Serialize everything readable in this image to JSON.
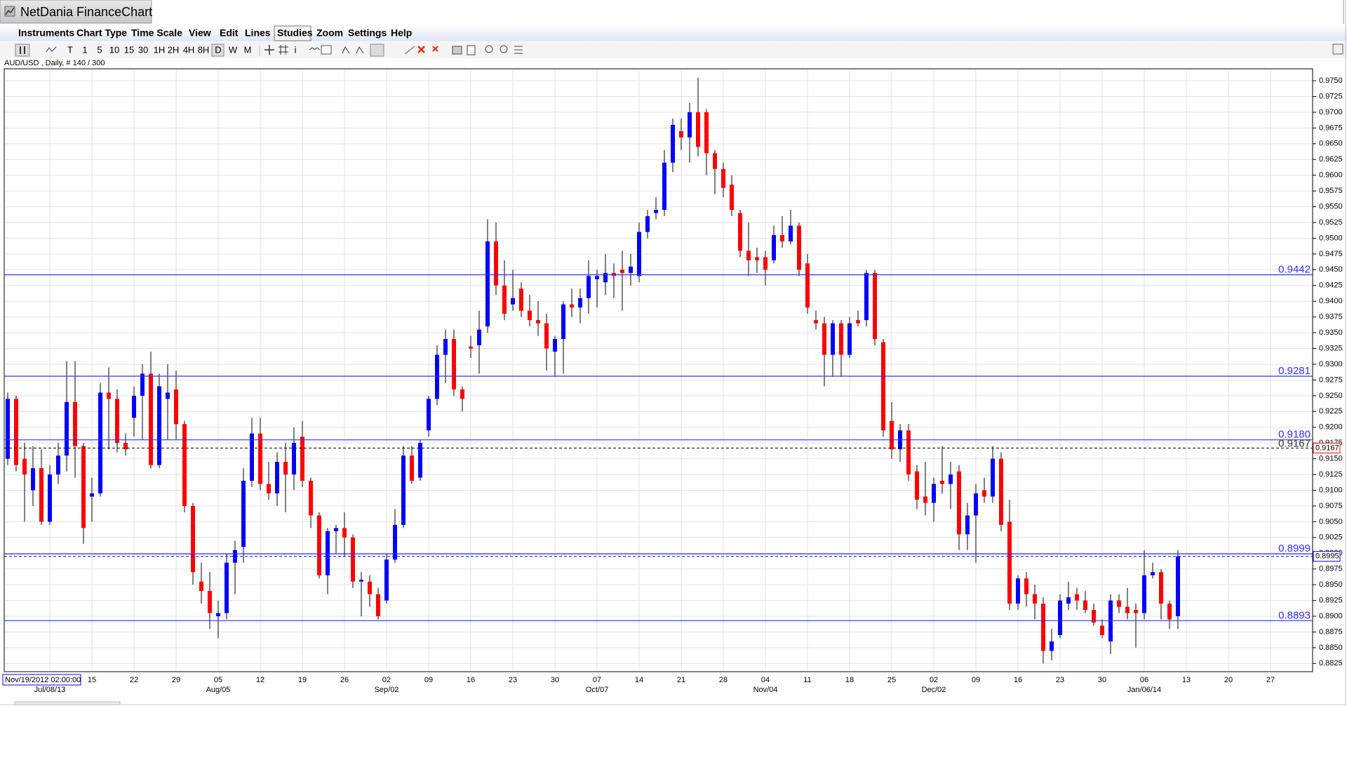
{
  "window": {
    "title": "NetDania FinanceChart"
  },
  "menu": [
    "Instruments",
    "Chart Type",
    "Time Scale",
    "View",
    "Edit",
    "Lines",
    "Studies",
    "Zoom",
    "Settings",
    "Help"
  ],
  "toolbar": [
    "T",
    "1",
    "5",
    "10",
    "15",
    "30",
    "1H",
    "2H",
    "4H",
    "8H",
    "D",
    "W",
    "M",
    "i"
  ],
  "chart_data": {
    "type": "candlestick",
    "title": "AUD/USD , Daily, # 140 / 300",
    "cursor_label": "Nov/19/2012 02:00:00",
    "categories": [
      null,
      null,
      null,
      null,
      null,
      null,
      null,
      null,
      null,
      null,
      "15",
      null,
      null,
      null,
      null,
      "22",
      null,
      null,
      null,
      null,
      "29",
      null,
      null,
      null,
      null,
      "05",
      null,
      null,
      null,
      null,
      "12",
      null,
      null,
      null,
      null,
      "19",
      null,
      null,
      null,
      null,
      "26",
      null,
      null,
      null,
      null,
      "02",
      null,
      null,
      null,
      null,
      "09",
      null,
      null,
      null,
      null,
      "16",
      null,
      null,
      null,
      null,
      "23",
      null,
      null,
      null,
      null,
      "30",
      null,
      null,
      null,
      null,
      "07",
      null,
      null,
      null,
      null,
      "14",
      null,
      null,
      null,
      null,
      "21",
      null,
      null,
      null,
      null,
      "28",
      null,
      null,
      null,
      null,
      "04",
      null,
      null,
      null,
      null,
      "11",
      null,
      null,
      null,
      null,
      "18",
      null,
      null,
      null,
      null,
      "25",
      null,
      null,
      null,
      null,
      "02",
      null,
      null,
      null,
      null,
      "09",
      null,
      null,
      null,
      null,
      "16",
      null,
      null,
      null,
      null,
      "23",
      null,
      null,
      null,
      null,
      "30",
      null,
      null,
      null,
      null,
      "06",
      null,
      null,
      null,
      null,
      "13",
      null,
      null,
      null,
      null,
      "20",
      null,
      null,
      null,
      null,
      "27"
    ],
    "months": [
      null,
      null,
      null,
      null,
      null,
      "Jul/08/13",
      null,
      null,
      null,
      null,
      null,
      null,
      null,
      null,
      null,
      null,
      null,
      null,
      null,
      null,
      null,
      null,
      null,
      null,
      null,
      "Aug/05",
      null,
      null,
      null,
      null,
      null,
      null,
      null,
      null,
      null,
      null,
      null,
      null,
      null,
      null,
      null,
      null,
      null,
      null,
      null,
      "Sep/02",
      null,
      null,
      null,
      null,
      null,
      null,
      null,
      null,
      null,
      null,
      null,
      null,
      null,
      null,
      null,
      null,
      null,
      null,
      null,
      null,
      null,
      null,
      null,
      null,
      "Oct/07",
      null,
      null,
      null,
      null,
      null,
      null,
      null,
      null,
      null,
      null,
      null,
      null,
      null,
      null,
      null,
      null,
      null,
      null,
      null,
      "Nov/04",
      null,
      null,
      null,
      null,
      null,
      null,
      null,
      null,
      null,
      null,
      null,
      null,
      null,
      null,
      null,
      null,
      null,
      null,
      null,
      "Dec/02",
      null,
      null,
      null,
      null,
      null,
      null,
      null,
      null,
      null,
      null,
      null,
      null,
      null,
      null,
      null,
      null,
      null,
      null,
      null,
      null,
      null,
      null,
      null,
      null,
      "Jan/06/14",
      null,
      null,
      null,
      null,
      null,
      null,
      null,
      null,
      null,
      null,
      null,
      null,
      null,
      null,
      null
    ],
    "open": [
      0.915,
      0.9245,
      0.915,
      0.91,
      0.9135,
      0.905,
      0.9125,
      0.9155,
      0.924,
      0.917,
      0.909,
      0.9095,
      0.9255,
      0.9245,
      0.9175,
      0.9215,
      0.925,
      0.9285,
      0.914,
      0.9245,
      0.926,
      0.9205,
      0.9075,
      0.8955,
      0.894,
      0.89,
      0.8905,
      0.8985,
      0.901,
      0.9115,
      0.919,
      0.911,
      0.9095,
      0.9145,
      0.9125,
      0.9185,
      0.9115,
      0.906,
      0.8965,
      0.9035,
      0.904,
      0.9025,
      0.8955,
      0.8955,
      0.8935,
      0.8925,
      0.899,
      0.9045,
      0.9155,
      0.912,
      0.9195,
      0.9245,
      0.9315,
      0.934,
      0.926,
      0.9328,
      0.933,
      0.936,
      0.9495,
      0.9425,
      0.9395,
      0.942,
      0.9385,
      0.937,
      0.9365,
      0.932,
      0.934,
      0.9395,
      0.939,
      0.9405,
      0.9435,
      0.943,
      0.9445,
      0.945,
      0.9445,
      0.944,
      0.951,
      0.954,
      0.9545,
      0.962,
      0.967,
      0.966,
      0.97,
      0.97,
      0.9635,
      0.961,
      0.9585,
      0.954,
      0.948,
      0.947,
      0.947,
      0.9465,
      0.9505,
      0.9495,
      0.952,
      0.946,
      0.937,
      0.9365,
      0.9315,
      0.9365,
      0.9315,
      0.937,
      0.937,
      0.9445,
      0.9335,
      0.921,
      0.9165,
      0.9195,
      0.913,
      0.909,
      0.908,
      0.9115,
      0.911,
      0.913,
      0.903,
      0.906,
      0.91,
      0.909,
      0.915,
      0.905,
      0.892,
      0.896,
      0.8935,
      0.892,
      0.8845,
      0.887,
      0.892,
      0.8935,
      0.8925,
      0.891,
      0.8885,
      0.886,
      0.8925,
      0.8915,
      0.891,
      0.8905,
      0.8965,
      0.897,
      0.892,
      0.89,
      null,
      null,
      null,
      null,
      null,
      null,
      null,
      null,
      null,
      null,
      null
    ],
    "high": [
      0.9255,
      0.925,
      0.9175,
      0.917,
      0.9165,
      0.914,
      0.9175,
      0.9305,
      0.9305,
      0.9175,
      0.912,
      0.927,
      0.9295,
      0.926,
      0.919,
      0.9265,
      0.93,
      0.932,
      0.9285,
      0.93,
      0.929,
      0.921,
      0.908,
      0.8985,
      0.897,
      0.8925,
      0.9,
      0.902,
      0.9135,
      0.9215,
      0.9215,
      0.9145,
      0.916,
      0.9175,
      0.92,
      0.921,
      0.912,
      0.9065,
      0.904,
      0.9045,
      0.9065,
      0.903,
      0.897,
      0.8965,
      0.8945,
      0.9,
      0.907,
      0.917,
      0.917,
      0.918,
      0.925,
      0.933,
      0.9355,
      0.9355,
      0.9265,
      0.9345,
      0.9385,
      0.953,
      0.9525,
      0.9465,
      0.945,
      0.943,
      0.941,
      0.94,
      0.938,
      0.9345,
      0.94,
      0.942,
      0.942,
      0.9465,
      0.945,
      0.9475,
      0.946,
      0.948,
      0.9475,
      0.9525,
      0.9545,
      0.9565,
      0.964,
      0.969,
      0.969,
      0.9715,
      0.9755,
      0.9705,
      0.964,
      0.962,
      0.96,
      0.9545,
      0.9525,
      0.9485,
      0.948,
      0.952,
      0.9535,
      0.9545,
      0.9525,
      0.9475,
      0.9385,
      0.9375,
      0.937,
      0.937,
      0.9375,
      0.9385,
      0.945,
      0.945,
      0.934,
      0.924,
      0.9205,
      0.9205,
      0.914,
      0.9145,
      0.912,
      0.917,
      0.9145,
      0.914,
      0.908,
      0.911,
      0.912,
      0.917,
      0.916,
      0.9085,
      0.8965,
      0.897,
      0.895,
      0.893,
      0.888,
      0.8935,
      0.8955,
      0.8945,
      0.894,
      0.892,
      0.8895,
      0.8935,
      0.8935,
      0.8945,
      0.892,
      0.9005,
      0.8985,
      0.8975,
      0.8925,
      0.9005,
      null,
      null,
      null,
      null,
      null,
      null,
      null,
      null,
      null,
      null,
      null
    ],
    "low": [
      0.914,
      0.913,
      0.905,
      0.9075,
      0.9045,
      0.9045,
      0.911,
      0.913,
      0.912,
      0.9015,
      0.905,
      0.909,
      0.9165,
      0.916,
      0.9155,
      0.9185,
      0.918,
      0.9135,
      0.9135,
      0.918,
      0.918,
      0.9065,
      0.895,
      0.892,
      0.888,
      0.8865,
      0.8895,
      0.8935,
      0.8985,
      0.9105,
      0.91,
      0.9085,
      0.9075,
      0.9065,
      0.91,
      0.9105,
      0.904,
      0.896,
      0.8935,
      0.9,
      0.8995,
      0.8945,
      0.89,
      0.8915,
      0.8895,
      0.892,
      0.8985,
      0.904,
      0.911,
      0.9115,
      0.9185,
      0.9235,
      0.927,
      0.925,
      0.9225,
      0.931,
      0.9285,
      0.935,
      0.941,
      0.937,
      0.9385,
      0.9375,
      0.936,
      0.9345,
      0.929,
      0.928,
      0.9285,
      0.9375,
      0.9365,
      0.938,
      0.939,
      0.941,
      0.9405,
      0.9385,
      0.9425,
      0.943,
      0.95,
      0.953,
      0.9535,
      0.9605,
      0.964,
      0.962,
      0.963,
      0.96,
      0.957,
      0.9565,
      0.9535,
      0.947,
      0.944,
      0.9445,
      0.9425,
      0.946,
      0.9485,
      0.949,
      0.944,
      0.938,
      0.9355,
      0.9265,
      0.928,
      0.928,
      0.931,
      0.936,
      0.936,
      0.933,
      0.9185,
      0.915,
      0.9145,
      0.9115,
      0.907,
      0.906,
      0.905,
      0.9095,
      0.907,
      0.9005,
      0.9005,
      0.8985,
      0.908,
      0.908,
      0.9035,
      0.891,
      0.891,
      0.8915,
      0.8895,
      0.8825,
      0.883,
      0.8865,
      0.891,
      0.891,
      0.8905,
      0.8885,
      0.8865,
      0.884,
      0.8905,
      0.8895,
      0.885,
      0.8895,
      0.896,
      0.8895,
      0.888,
      0.888,
      null,
      null,
      null,
      null,
      null,
      null,
      null,
      null,
      null,
      null,
      null
    ],
    "close": [
      0.9245,
      0.914,
      0.9125,
      0.9135,
      0.905,
      0.9125,
      0.9155,
      0.924,
      0.917,
      0.904,
      0.9095,
      0.9255,
      0.9245,
      0.9175,
      0.9165,
      0.925,
      0.9285,
      0.914,
      0.9265,
      0.9255,
      0.9205,
      0.9075,
      0.897,
      0.894,
      0.8905,
      0.8905,
      0.8985,
      0.9005,
      0.9115,
      0.919,
      0.911,
      0.9095,
      0.9145,
      0.9125,
      0.9175,
      0.9115,
      0.906,
      0.8965,
      0.9035,
      0.904,
      0.9025,
      0.8955,
      0.8958,
      0.8935,
      0.89,
      0.899,
      0.9045,
      0.9155,
      0.9115,
      0.9175,
      0.9245,
      0.9315,
      0.934,
      0.926,
      0.9245,
      0.9325,
      0.9355,
      0.9495,
      0.9425,
      0.938,
      0.9405,
      0.9385,
      0.937,
      0.9365,
      0.9325,
      0.934,
      0.9395,
      0.939,
      0.9405,
      0.944,
      0.944,
      0.9445,
      0.944,
      0.9445,
      0.9455,
      0.951,
      0.9535,
      0.9545,
      0.962,
      0.968,
      0.966,
      0.97,
      0.9645,
      0.9635,
      0.961,
      0.958,
      0.9545,
      0.948,
      0.9465,
      0.9465,
      0.945,
      0.9505,
      0.9495,
      0.952,
      0.945,
      0.939,
      0.9365,
      0.9315,
      0.9365,
      0.9315,
      0.9365,
      0.9365,
      0.9445,
      0.934,
      0.9195,
      0.9165,
      0.9195,
      0.9125,
      0.9085,
      0.908,
      0.911,
      0.911,
      0.9125,
      0.903,
      0.906,
      0.9095,
      0.909,
      0.915,
      0.9045,
      0.892,
      0.896,
      0.8935,
      0.892,
      0.8845,
      0.886,
      0.8925,
      0.893,
      0.8925,
      0.891,
      0.889,
      0.887,
      0.8925,
      0.8915,
      0.8905,
      0.8905,
      0.8965,
      0.897,
      0.892,
      0.8895,
      0.8995,
      null,
      null,
      null,
      null,
      null,
      null,
      null,
      null,
      null,
      null,
      null
    ],
    "up_color": "#0000ff",
    "down_color": "#ff0000",
    "ylim": [
      0.8812,
      0.9769
    ],
    "yticks": [
      0.8825,
      {
        "value": 0.885,
        "label": "0.8850"
      },
      0.8875,
      {
        "value": 0.89,
        "label": "0.8900"
      },
      0.8925,
      {
        "value": 0.895,
        "label": "0.8950"
      },
      0.8975,
      {
        "value": 0.9,
        "label": "0.9000"
      },
      0.9025,
      {
        "value": 0.905,
        "label": "0.9050"
      },
      0.9075,
      {
        "value": 0.91,
        "label": "0.9100"
      },
      0.9125,
      {
        "value": 0.915,
        "label": "0.9150"
      },
      0.9175,
      {
        "value": 0.92,
        "label": "0.9200"
      },
      0.9225,
      {
        "value": 0.925,
        "label": "0.9250"
      },
      0.9275,
      {
        "value": 0.93,
        "label": "0.9300"
      },
      0.9325,
      {
        "value": 0.935,
        "label": "0.9350"
      },
      0.9375,
      {
        "value": 0.94,
        "label": "0.9400"
      },
      0.9425,
      {
        "value": 0.945,
        "label": "0.9450"
      },
      0.9475,
      {
        "value": 0.95,
        "label": "0.9500"
      },
      0.9525,
      {
        "value": 0.955,
        "label": "0.9550"
      },
      0.9575,
      {
        "value": 0.96,
        "label": "0.9600"
      },
      0.9625,
      {
        "value": 0.965,
        "label": "0.9650"
      },
      0.9675,
      {
        "value": 0.97,
        "label": "0.9700"
      },
      0.9725,
      {
        "value": 0.975,
        "label": "0.9750"
      }
    ],
    "grid": true,
    "hline_color": "#3030ff",
    "hlines": [
      0.9442,
      0.9281,
      {
        "value": 0.918,
        "label": "0.9180"
      },
      0.8999,
      0.8893
    ],
    "dashed_lines": [
      {
        "value": 0.9167,
        "color": "#000000"
      },
      {
        "value": 0.8995,
        "color": "#0000ff"
      }
    ]
  }
}
